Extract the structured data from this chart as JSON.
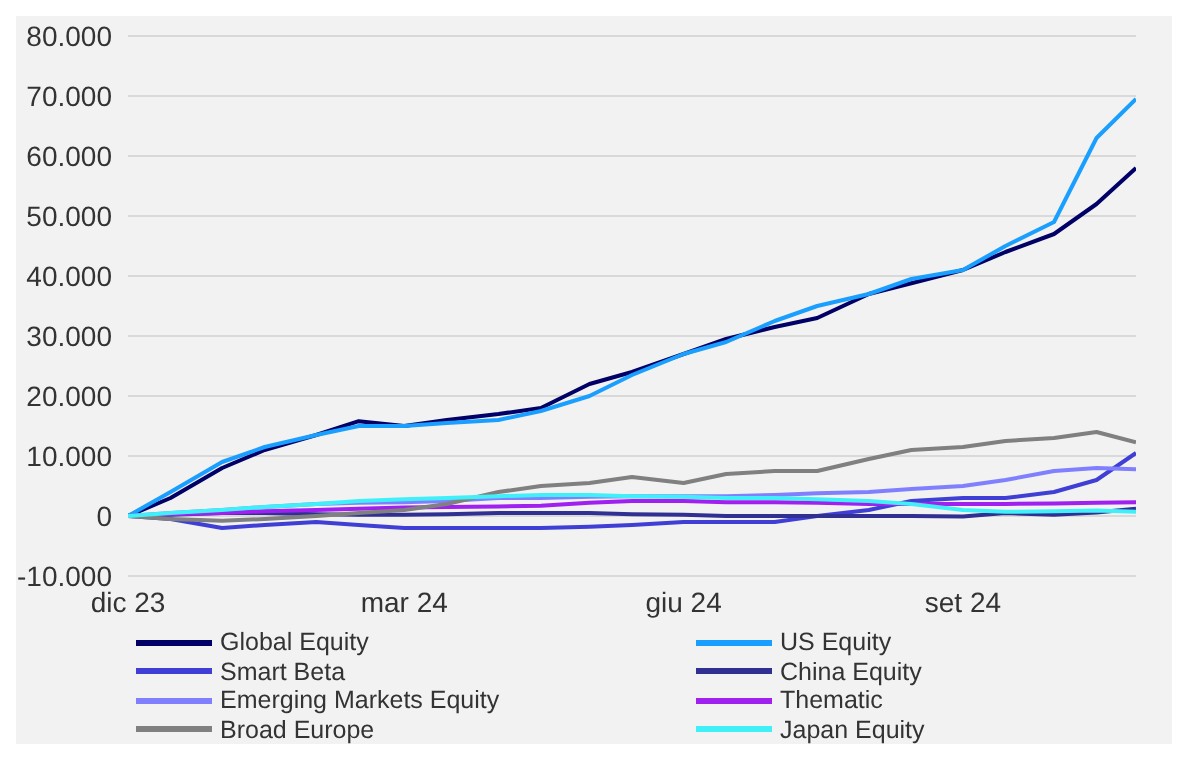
{
  "chart_data": {
    "type": "line",
    "x": [
      "2023-12-01",
      "2023-12-15",
      "2024-01-01",
      "2024-01-15",
      "2024-02-01",
      "2024-02-15",
      "2024-03-01",
      "2024-03-15",
      "2024-04-01",
      "2024-04-15",
      "2024-05-01",
      "2024-05-15",
      "2024-06-01",
      "2024-06-15",
      "2024-07-01",
      "2024-07-15",
      "2024-08-01",
      "2024-08-15",
      "2024-09-01",
      "2024-09-15",
      "2024-10-01",
      "2024-10-15",
      "2024-10-28"
    ],
    "series": [
      {
        "name": "Global Equity",
        "color": "#000066",
        "values": [
          0,
          3000,
          8000,
          11000,
          13500,
          15800,
          15000,
          16000,
          17000,
          18000,
          22000,
          24000,
          27000,
          29500,
          31500,
          33000,
          37000,
          38800,
          41000,
          44000,
          47000,
          52000,
          58000
        ]
      },
      {
        "name": "US Equity",
        "color": "#1a9fff",
        "values": [
          0,
          4000,
          9000,
          11500,
          13500,
          15000,
          15000,
          15500,
          16000,
          17500,
          20000,
          23500,
          27000,
          29000,
          32500,
          35000,
          37000,
          39500,
          41000,
          45000,
          49000,
          63000,
          69500
        ]
      },
      {
        "name": "Smart Beta",
        "color": "#3f3fd6",
        "values": [
          0,
          -500,
          -2000,
          -1500,
          -1000,
          -1500,
          -2000,
          -2000,
          -2000,
          -2000,
          -1800,
          -1500,
          -1000,
          -1000,
          -1000,
          0,
          1000,
          2500,
          3000,
          3000,
          4000,
          6000,
          10500
        ]
      },
      {
        "name": "China Equity",
        "color": "#303093",
        "values": [
          0,
          200,
          500,
          500,
          300,
          200,
          200,
          300,
          500,
          500,
          500,
          300,
          200,
          0,
          0,
          0,
          0,
          0,
          -100,
          500,
          200,
          600,
          1200
        ]
      },
      {
        "name": "Emerging Markets Equity",
        "color": "#8080ff",
        "values": [
          0,
          500,
          1000,
          1500,
          2000,
          2200,
          2300,
          2500,
          3000,
          3000,
          3200,
          3300,
          3300,
          3300,
          3500,
          3800,
          4000,
          4500,
          5000,
          6000,
          7500,
          8000,
          7800
        ]
      },
      {
        "name": "Thematic",
        "color": "#a020f0",
        "values": [
          0,
          300,
          500,
          800,
          1000,
          1200,
          1400,
          1500,
          1600,
          1700,
          2200,
          2500,
          2500,
          2300,
          2300,
          2200,
          2000,
          2000,
          2000,
          2000,
          2100,
          2200,
          2300
        ]
      },
      {
        "name": "Broad Europe",
        "color": "#808080",
        "values": [
          0,
          -500,
          -800,
          -500,
          0,
          500,
          1000,
          2000,
          4000,
          5000,
          5500,
          6500,
          5500,
          7000,
          7500,
          7500,
          9500,
          11000,
          11500,
          12500,
          13000,
          14000,
          12300
        ]
      },
      {
        "name": "Japan Equity",
        "color": "#40f0f8",
        "values": [
          0,
          500,
          1000,
          1500,
          2000,
          2500,
          2800,
          3000,
          3300,
          3500,
          3500,
          3300,
          3200,
          3000,
          3000,
          2800,
          2500,
          2000,
          1000,
          700,
          800,
          900,
          700
        ]
      }
    ],
    "xlim": [
      "2023-12-01",
      "2024-10-28"
    ],
    "xticks": [
      {
        "value": "2023-12-01",
        "label": "dic 23"
      },
      {
        "value": "2024-03-01",
        "label": "mar 24"
      },
      {
        "value": "2024-06-01",
        "label": "giu 24"
      },
      {
        "value": "2024-09-01",
        "label": "set 24"
      }
    ],
    "ylim": [
      -10000,
      80000
    ],
    "yticks": [
      {
        "value": -10000,
        "label": "-10.000"
      },
      0,
      {
        "value": 10000,
        "label": "10.000"
      },
      {
        "value": 20000,
        "label": "20.000"
      },
      {
        "value": 30000,
        "label": "30.000"
      },
      {
        "value": 40000,
        "label": "40.000"
      },
      {
        "value": 50000,
        "label": "50.000"
      },
      {
        "value": 60000,
        "label": "60.000"
      },
      {
        "value": 70000,
        "label": "70.000"
      },
      {
        "value": 80000,
        "label": "80.000"
      }
    ],
    "grid": "y",
    "legend": "bottom",
    "marker": "none",
    "line_style": "solid"
  }
}
